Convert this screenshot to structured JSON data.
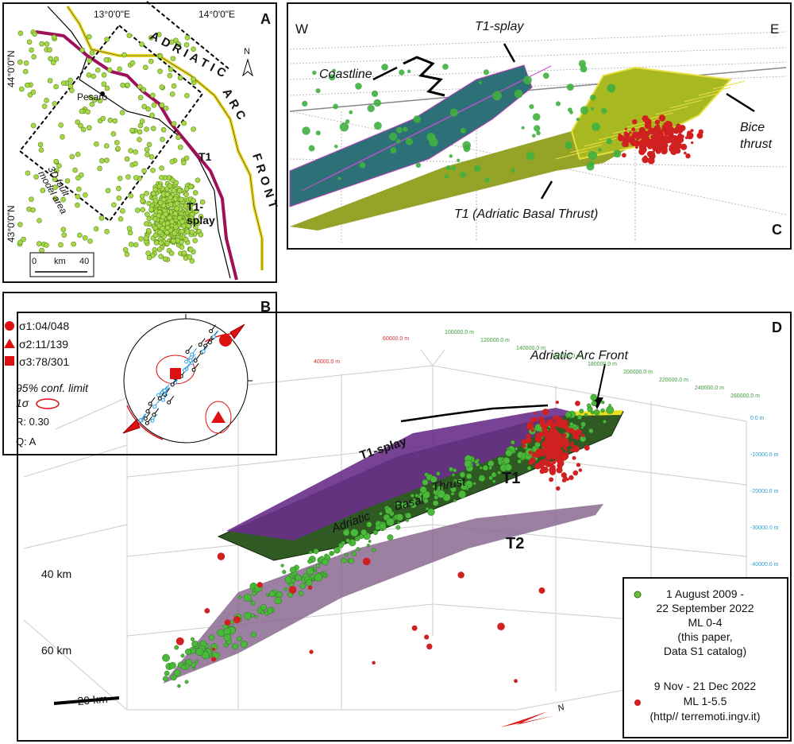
{
  "panels": {
    "a": {
      "letter": "A",
      "lon_labels": [
        "13°0'0\"E",
        "14°0'0\"E"
      ],
      "lat_labels": [
        "44°0'0\"N",
        "43°0'0\"N"
      ],
      "north": "N",
      "front_words": [
        "ADRIATIC",
        "ARC",
        "FRONT"
      ],
      "city": "Pesaro",
      "t1": "T1",
      "t1_splay": [
        "T1-",
        "splay"
      ],
      "area_label": [
        "3D fault",
        "model area"
      ],
      "scale": [
        "0",
        "km",
        "40"
      ]
    },
    "b": {
      "letter": "B",
      "sigmas": [
        "σ1:04/048",
        "σ2:11/139",
        "σ3:78/301"
      ],
      "conf": "95% conf. limit",
      "one_sigma": "1σ",
      "r": "R: 0.30",
      "q": "Q: A"
    },
    "c": {
      "letter": "C",
      "west": "W",
      "east": "E",
      "t1_splay": "T1-splay",
      "coastline": "Coastline",
      "bice": [
        "Bice",
        "thrust"
      ],
      "t1": "T1 (Adriatic Basal Thrust)"
    },
    "d": {
      "letter": "D",
      "front": "Adriatic Arc Front",
      "t1_splay": "T1-splay",
      "t1": "T1",
      "basal": [
        "Adriatic",
        "Basal",
        "Thrust"
      ],
      "t2": "T2",
      "depths": [
        "40 km",
        "60 km"
      ],
      "scale": "20 km",
      "north": "N",
      "red_axis": [
        "60000.0 m",
        "40000.0 m"
      ],
      "green_axis": [
        "100000.0 m",
        "120000.0 m",
        "140000.0 m",
        "160000.0 m",
        "180000.0 m",
        "200000.0 m",
        "220000.0 m",
        "240000.0 m",
        "260000.0 m"
      ],
      "depth_axis": [
        "0.0 m",
        "-10000.0 m",
        "-20000.0 m",
        "-30000.0 m",
        "-40000.0 m"
      ],
      "legend": {
        "green": [
          "1 August 2009 -",
          "22 September 2022",
          "ML 0-4",
          "(this paper,",
          "Data S1 catalog)"
        ],
        "red": [
          "9 Nov - 21 Dec 2022",
          "ML 1-5.5",
          "(http// terremoti.ingv.it)"
        ]
      }
    }
  }
}
